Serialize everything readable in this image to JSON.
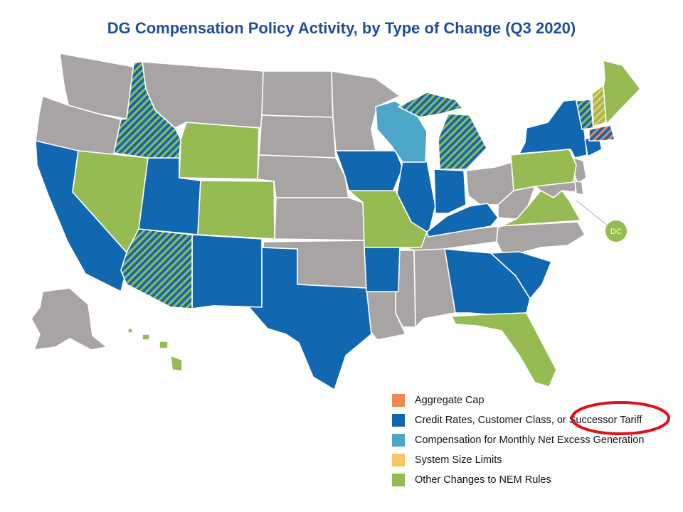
{
  "title": "DG Compensation Policy Activity, by Type of Change (Q3 2020)",
  "colors": {
    "no_activity": "#a8a4a4",
    "aggregate_cap": "#ee8a4f",
    "credit_rates": "#1168b0",
    "monthly_excess": "#4ba6c7",
    "system_size": "#f6c766",
    "other_nem": "#95bb52",
    "annotation": "#e0111a"
  },
  "dc_badge": "DC",
  "legend": [
    {
      "key": "aggregate_cap",
      "label": "Aggregate Cap"
    },
    {
      "key": "credit_rates",
      "label": "Credit Rates, Customer Class, or Successor Tariff"
    },
    {
      "key": "monthly_excess",
      "label": "Compensation for Monthly Net Excess Generation"
    },
    {
      "key": "system_size",
      "label": "System Size Limits"
    },
    {
      "key": "other_nem",
      "label": "Other Changes to NEM Rules"
    }
  ],
  "map_data": {
    "states_by_category": {
      "credit_rates": [
        "California",
        "Utah",
        "New Mexico",
        "Texas",
        "Arkansas",
        "Iowa",
        "Illinois",
        "Indiana",
        "Kentucky",
        "Georgia",
        "South Carolina",
        "New York",
        "Connecticut"
      ],
      "other_nem": [
        "Nevada",
        "Wyoming",
        "Colorado",
        "Missouri",
        "Virginia",
        "Pennsylvania",
        "Maine",
        "Florida",
        "Hawaii",
        "DC"
      ],
      "monthly_excess": [
        "Wisconsin"
      ],
      "credit_rates_and_other_nem": [
        "Idaho",
        "Arizona",
        "Michigan",
        "Vermont"
      ],
      "other_nem_and_system_size": [
        "New Hampshire"
      ],
      "aggregate_cap_and_credit_rates": [
        "Rhode Island",
        "Massachusetts"
      ]
    }
  }
}
